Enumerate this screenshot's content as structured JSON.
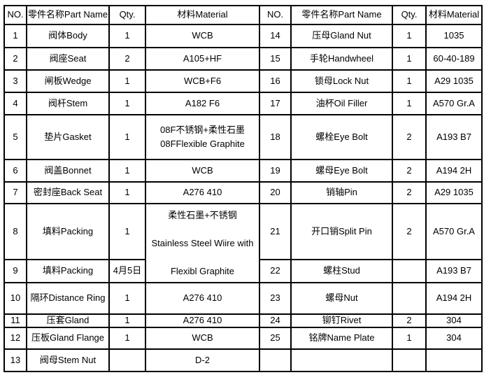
{
  "table_title": "parts-material-list",
  "hdr": {
    "no": "NO.",
    "name": "零件名称Part Name",
    "qty": "Qty.",
    "mat": "材料Material"
  },
  "rows": [
    {
      "l": {
        "no": "1",
        "name": "阀体Body",
        "qty": "1",
        "mat": "WCB"
      },
      "r": {
        "no": "14",
        "name": "压母Gland Nut",
        "qty": "1",
        "mat": "1035"
      }
    },
    {
      "l": {
        "no": "2",
        "name": "阀座Seat",
        "qty": "2",
        "mat": "A105+HF"
      },
      "r": {
        "no": "15",
        "name": "手轮Handwheel",
        "qty": "1",
        "mat": "60-40-189"
      }
    },
    {
      "l": {
        "no": "3",
        "name": "闸板Wedge",
        "qty": "1",
        "mat": "WCB+F6"
      },
      "r": {
        "no": "16",
        "name": "锁母Lock Nut",
        "qty": "1",
        "mat": "A29 1035"
      }
    },
    {
      "l": {
        "no": "4",
        "name": "阀杆Stem",
        "qty": "1",
        "mat": "A182 F6"
      },
      "r": {
        "no": "17",
        "name": "油杯Oil Filler",
        "qty": "1",
        "mat": "A570 Gr.A"
      }
    },
    {
      "l": {
        "no": "5",
        "name": "垫片Gasket",
        "qty": "1",
        "mat": "08F不锈钢+柔性石墨\n08FFlexible Graphite"
      },
      "r": {
        "no": "18",
        "name": "螺栓Eye Bolt",
        "qty": "2",
        "mat": "A193 B7"
      }
    },
    {
      "l": {
        "no": "6",
        "name": "阀盖Bonnet",
        "qty": "1",
        "mat": "WCB"
      },
      "r": {
        "no": "19",
        "name": "螺母Eye Bolt",
        "qty": "2",
        "mat": "A194 2H"
      }
    },
    {
      "l": {
        "no": "7",
        "name": "密封座Back Seat",
        "qty": "1",
        "mat": "A276 410"
      },
      "r": {
        "no": "20",
        "name": "销轴Pin",
        "qty": "2",
        "mat": "A29 1035"
      }
    },
    {
      "l": {
        "no": "8",
        "name": "填料Packing",
        "qty": "1",
        "mat": "柔性石墨+不锈钢\nStainless Steel Wiire with\nFlexibl Graphite"
      },
      "r": {
        "no": "21",
        "name": "开口销Split Pin",
        "qty": "2",
        "mat": "A570 Gr.A"
      }
    },
    {
      "l": {
        "no": "9",
        "name": "填料Packing",
        "qty": "4月5日"
      },
      "r": {
        "no": "22",
        "name": "螺柱Stud",
        "qty": "",
        "mat": "A193 B7"
      }
    },
    {
      "l": {
        "no": "10",
        "name": "隔环Distance Ring",
        "qty": "1",
        "mat": "A276 410"
      },
      "r": {
        "no": "23",
        "name": "螺母Nut",
        "qty": "",
        "mat": "A194 2H"
      }
    },
    {
      "l": {
        "no": "11",
        "name": "压套Gland",
        "qty": "1",
        "mat": "A276 410"
      },
      "r": {
        "no": "24",
        "name": "铆钉Rivet",
        "qty": "2",
        "mat": "304"
      }
    },
    {
      "l": {
        "no": "12",
        "name": "压板Gland Flange",
        "qty": "1",
        "mat": "WCB"
      },
      "r": {
        "no": "25",
        "name": "铭牌Name Plate",
        "qty": "1",
        "mat": "304"
      }
    },
    {
      "l": {
        "no": "13",
        "name": "阀母Stem Nut",
        "qty": "",
        "mat": "D-2"
      },
      "r": {
        "no": "",
        "name": "",
        "qty": "",
        "mat": ""
      }
    }
  ],
  "colors": {
    "border": "#000000",
    "background": "#ffffff",
    "text": "#000000"
  }
}
